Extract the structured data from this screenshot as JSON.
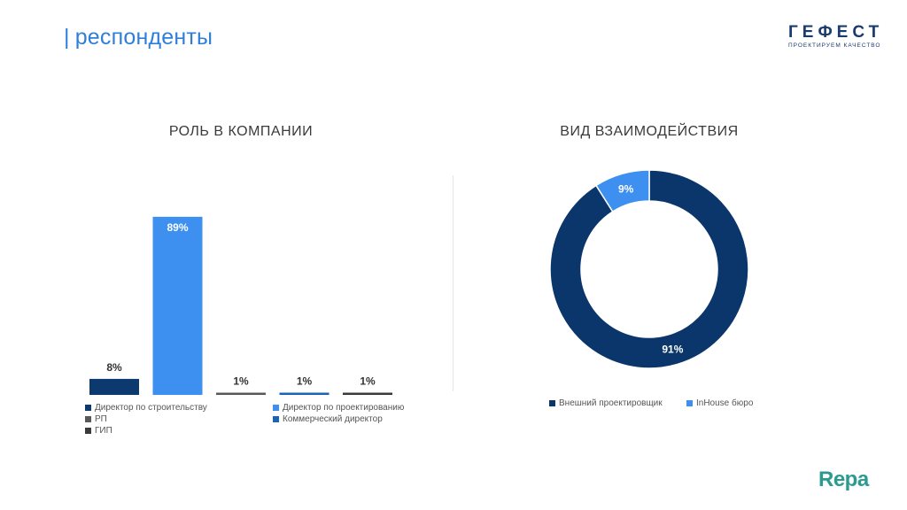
{
  "slide": {
    "title_bar": "|",
    "title": "респонденты"
  },
  "logo": {
    "word": "ГЕФЕСТ",
    "tagline": "ПРОЕКТИРУЕМ КАЧЕСТВО"
  },
  "footer_logo": "Repa",
  "chart_data": [
    {
      "type": "bar",
      "title": "РОЛЬ В КОМПАНИИ",
      "categories": [
        "Директор по строительству",
        "Директор по проектированию",
        "РП",
        "Коммерческий директор",
        "ГИП"
      ],
      "values": [
        8,
        89,
        1,
        1,
        1
      ],
      "labels": [
        "8%",
        "89%",
        "1%",
        "1%",
        "1%"
      ],
      "colors": [
        "#0d3a6e",
        "#3d8ff0",
        "#595959",
        "#1a63b5",
        "#3a3a3a"
      ],
      "ylim": [
        0,
        100
      ],
      "grid": false,
      "legend_position": "bottom"
    },
    {
      "type": "pie",
      "title": "ВИД ВЗАИМОДЕЙСТВИЯ",
      "donut": true,
      "categories": [
        "Внешний проектировщик",
        "InHouse бюро"
      ],
      "values": [
        91,
        9
      ],
      "labels": [
        "91%",
        "9%"
      ],
      "colors": [
        "#0b366b",
        "#3d8ff0"
      ],
      "legend_position": "bottom"
    }
  ]
}
